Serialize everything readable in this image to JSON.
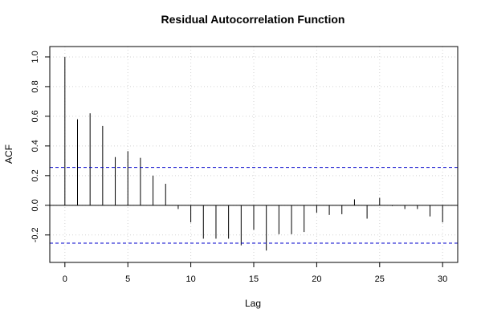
{
  "chart_data": {
    "type": "bar",
    "title": "Residual Autocorrelation Function",
    "xlabel": "Lag",
    "ylabel": "ACF",
    "xlim": [
      -1.2,
      31.2
    ],
    "ylim": [
      -0.385,
      1.07
    ],
    "xticks": [
      0,
      5,
      10,
      15,
      20,
      25,
      30
    ],
    "yticks": [
      -0.2,
      0.0,
      0.2,
      0.4,
      0.6,
      0.8,
      1.0
    ],
    "lags": [
      0,
      1,
      2,
      3,
      4,
      5,
      6,
      7,
      8,
      9,
      10,
      11,
      12,
      13,
      14,
      15,
      16,
      17,
      18,
      19,
      20,
      21,
      22,
      23,
      24,
      25,
      26,
      27,
      28,
      29,
      30
    ],
    "acf": [
      1.0,
      0.58,
      0.62,
      0.535,
      0.325,
      0.365,
      0.32,
      0.2,
      0.145,
      -0.025,
      -0.115,
      -0.225,
      -0.225,
      -0.225,
      -0.27,
      -0.165,
      -0.305,
      -0.195,
      -0.195,
      -0.18,
      -0.05,
      -0.065,
      -0.06,
      0.04,
      -0.09,
      0.05,
      -0.005,
      -0.025,
      -0.025,
      -0.075,
      -0.115
    ],
    "confidence_bound": 0.255,
    "grid": true,
    "colors": {
      "bars": "#000000",
      "confidence_lines": "#0000cc",
      "zero_line": "#000000",
      "grid": "#d3d3d3"
    }
  }
}
